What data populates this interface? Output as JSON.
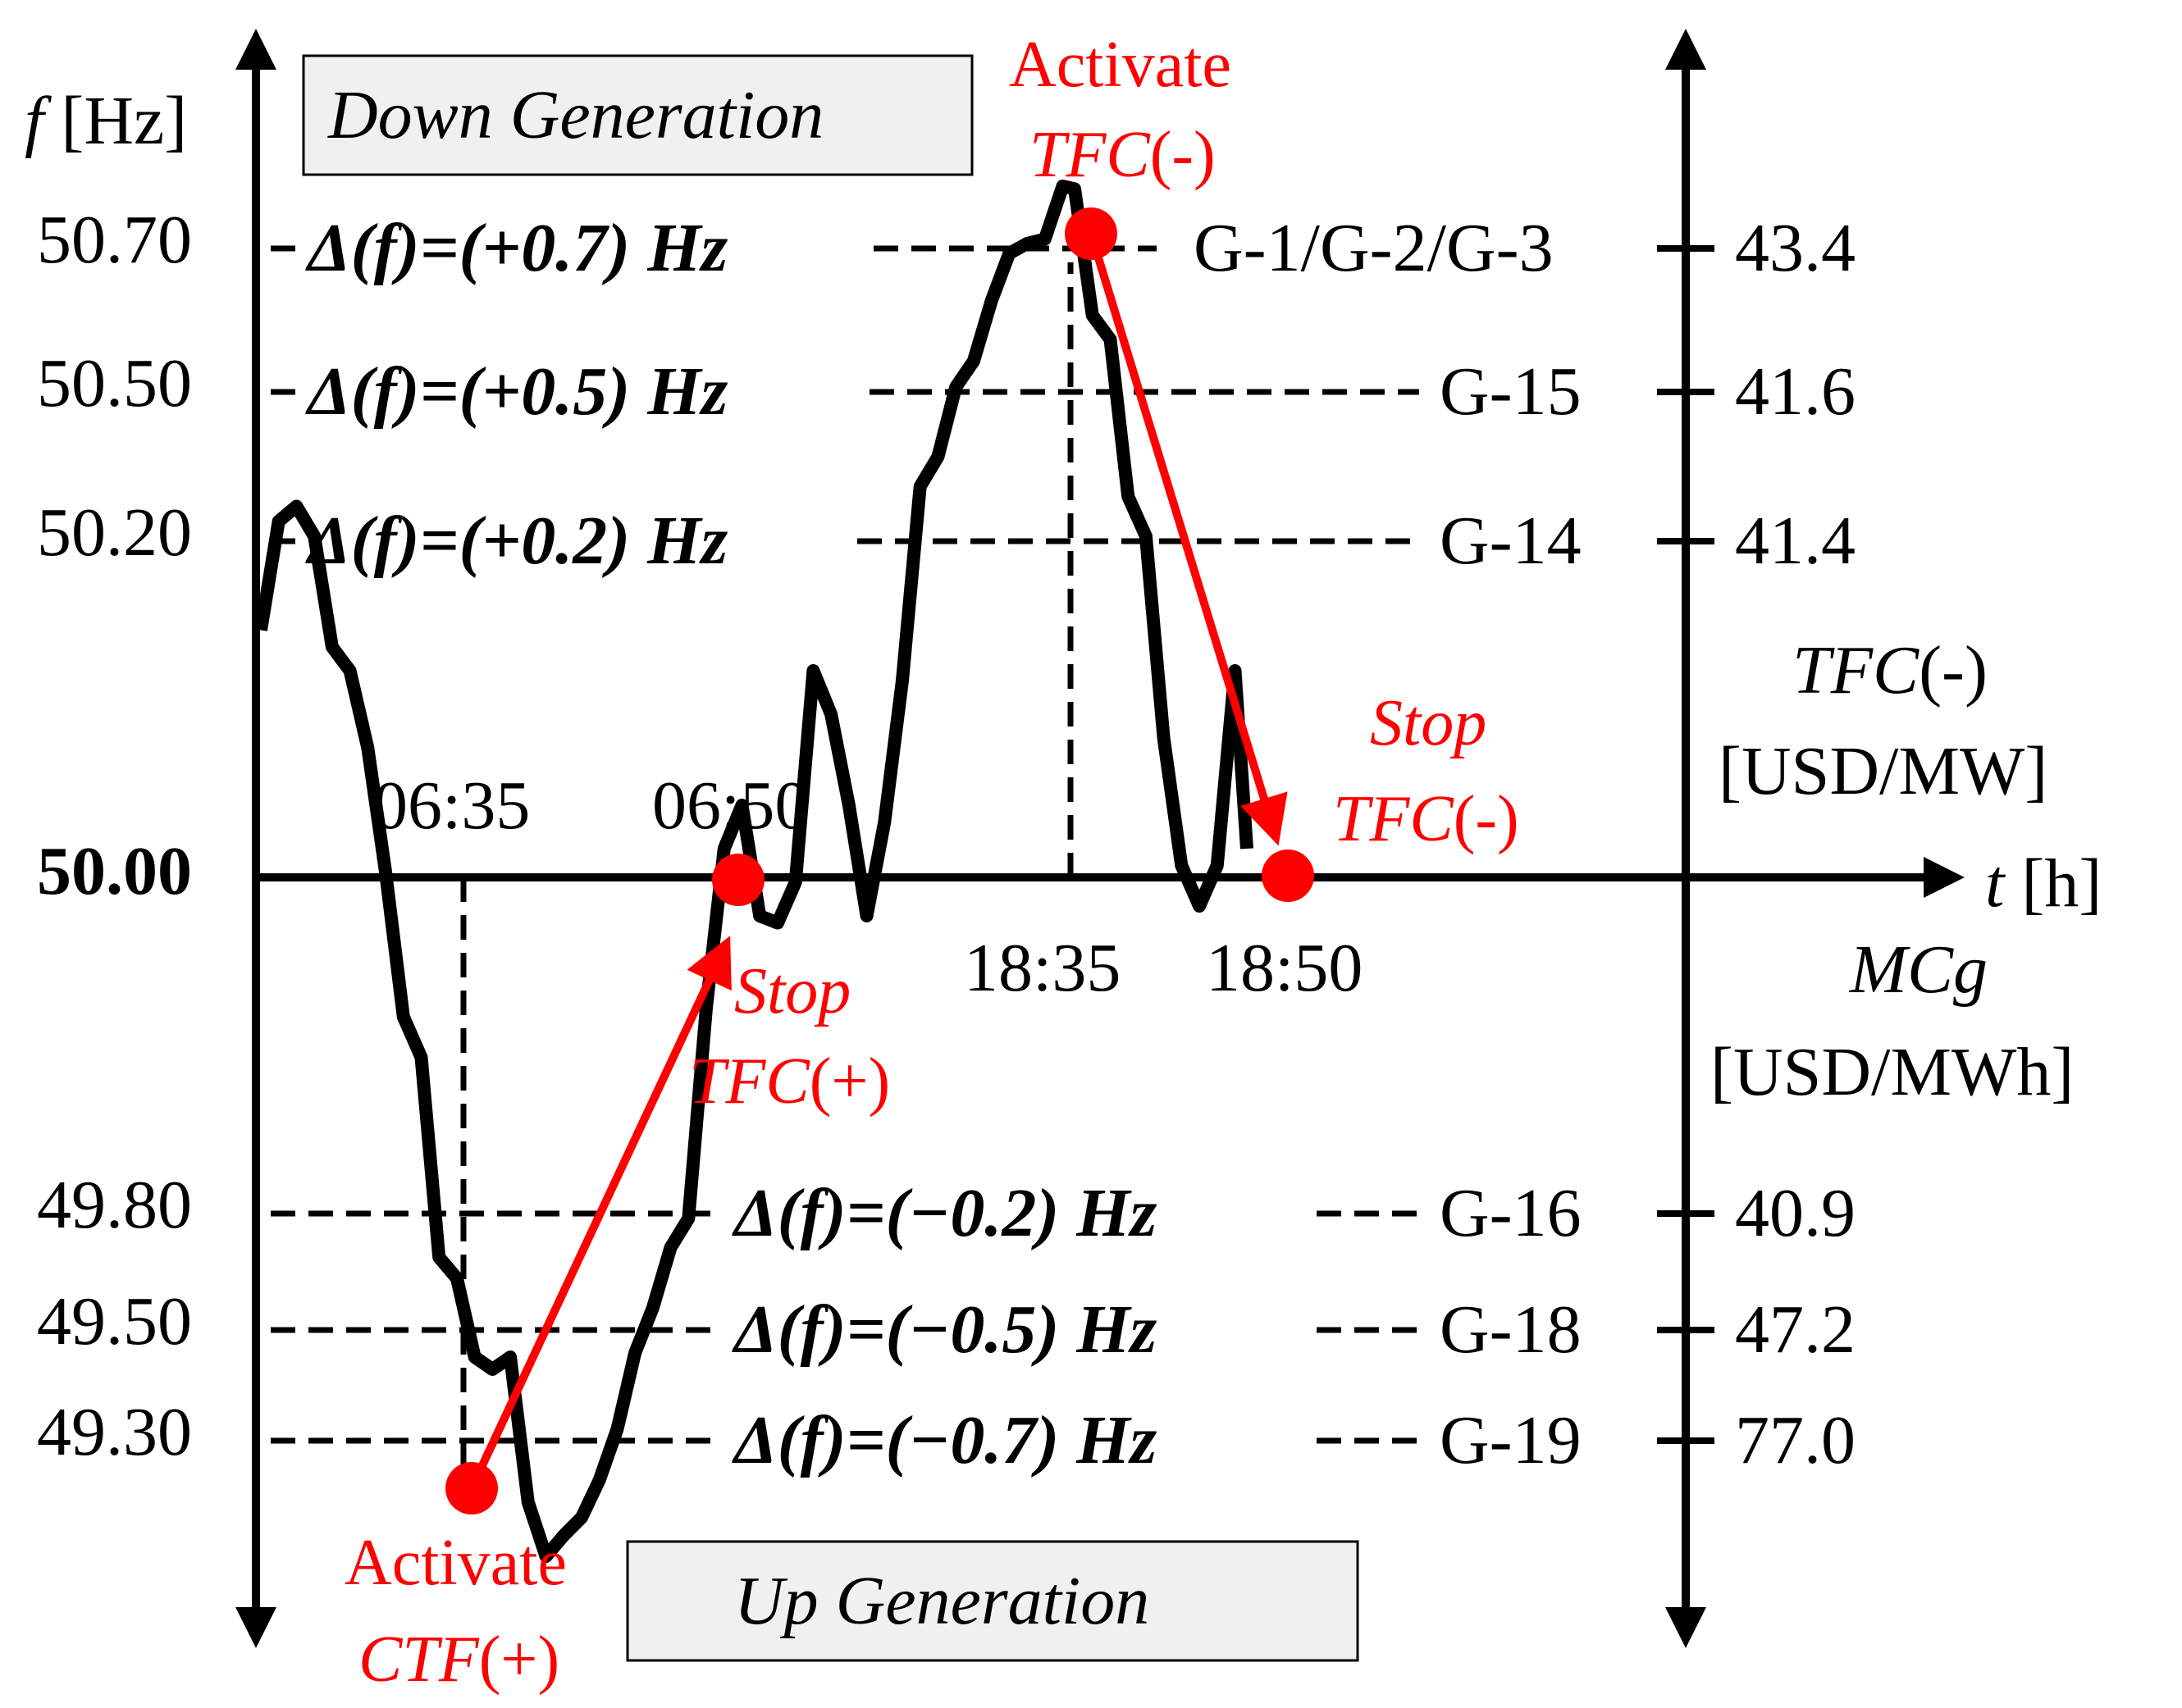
{
  "left_axis": {
    "label_italic": "f",
    "label_unit": " [Hz]",
    "ticks": [
      "50.70",
      "50.50",
      "50.20",
      "50.00",
      "49.80",
      "49.50",
      "49.30"
    ]
  },
  "time_axis": {
    "label_italic": "t",
    "label_unit": " [h]",
    "times": [
      "06:35",
      "06:50",
      "18:35",
      "18:50"
    ]
  },
  "right_axis": {
    "prices": [
      "43.4",
      "41.6",
      "41.4",
      "40.9",
      "47.2",
      "77.0"
    ],
    "upper_label_italic": "TFC",
    "upper_label_sign": "(-)",
    "upper_unit": "[USD/MW]",
    "lower_label": "MCg",
    "lower_unit": "[USD/MWh]"
  },
  "thresholds": [
    {
      "delta": "Δ(f)=(+0.7) Hz",
      "generators": "G-1/G-2/G-3"
    },
    {
      "delta": "Δ(f)=(+0.5) Hz",
      "generators": "G-15"
    },
    {
      "delta": "Δ(f)=(+0.2) Hz",
      "generators": "G-14"
    },
    {
      "delta": "Δ(f)=(−0.2) Hz",
      "generators": "G-16"
    },
    {
      "delta": "Δ(f)=(−0.5) Hz",
      "generators": "G-18"
    },
    {
      "delta": "Δ(f)=(−0.7) Hz",
      "generators": "G-19"
    }
  ],
  "boxes": {
    "down": "Down Generation",
    "up": "Up Generation"
  },
  "events": {
    "activate_plus": {
      "line1": "Activate",
      "line2_italic": "CTF",
      "line2_sign": "(+)"
    },
    "stop_plus": {
      "line1": "Stop",
      "line2_italic": "TFC",
      "line2_sign": "(+)"
    },
    "activate_minus": {
      "line1": "Activate",
      "line2_italic": "TFC",
      "line2_sign": "(-)"
    },
    "stop_minus": {
      "line1": "Stop",
      "line2_italic": "TFC",
      "line2_sign": "(-)"
    }
  },
  "colors": {
    "trace": "#000000",
    "event": "#ff0000",
    "box_fill": "#f0f0f0"
  },
  "trace": [
    [
      50.0,
      50.15
    ],
    [
      50.03,
      50.23
    ],
    [
      50.06,
      50.28
    ],
    [
      50.09,
      50.2
    ],
    [
      50.12,
      50.14
    ],
    [
      50.15,
      50.12
    ],
    [
      50.18,
      50.08
    ],
    [
      50.21,
      50.0
    ],
    [
      50.24,
      49.92
    ],
    [
      50.27,
      49.89
    ],
    [
      50.3,
      49.7
    ],
    [
      50.33,
      49.62
    ],
    [
      50.36,
      49.46
    ],
    [
      50.39,
      49.42
    ],
    [
      50.42,
      49.46
    ],
    [
      50.45,
      49.18
    ],
    [
      50.48,
      49.1
    ],
    [
      50.51,
      49.12
    ],
    [
      50.54,
      49.17
    ],
    [
      50.57,
      49.22
    ],
    [
      50.6,
      49.33
    ],
    [
      50.63,
      49.45
    ],
    [
      50.66,
      49.57
    ],
    [
      50.69,
      49.7
    ],
    [
      50.72,
      49.8
    ],
    [
      50.75,
      49.92
    ],
    [
      50.78,
      50.02
    ],
    [
      50.81,
      50.04
    ],
    [
      50.84,
      49.98
    ],
    [
      50.87,
      49.97
    ],
    [
      50.9,
      50.0
    ],
    [
      50.93,
      50.12
    ],
    [
      50.96,
      50.1
    ],
    [
      50.99,
      50.04
    ],
    [
      51.02,
      49.98
    ],
    [
      51.05,
      50.03
    ],
    [
      51.08,
      50.12
    ],
    [
      51.11,
      50.3
    ],
    [
      51.14,
      50.38
    ],
    [
      51.17,
      50.5
    ],
    [
      51.2,
      50.55
    ],
    [
      51.23,
      50.62
    ],
    [
      51.26,
      50.7
    ],
    [
      51.29,
      50.7
    ],
    [
      51.32,
      50.72
    ],
    [
      51.35,
      50.78
    ],
    [
      51.37,
      50.79
    ],
    [
      51.4,
      50.6
    ],
    [
      51.43,
      50.58
    ],
    [
      51.46,
      50.28
    ],
    [
      51.49,
      50.22
    ],
    [
      51.52,
      50.08
    ],
    [
      51.55,
      50.01
    ],
    [
      51.58,
      49.98
    ],
    [
      51.61,
      50.01
    ],
    [
      51.64,
      50.12
    ],
    [
      51.66,
      50.02
    ]
  ]
}
